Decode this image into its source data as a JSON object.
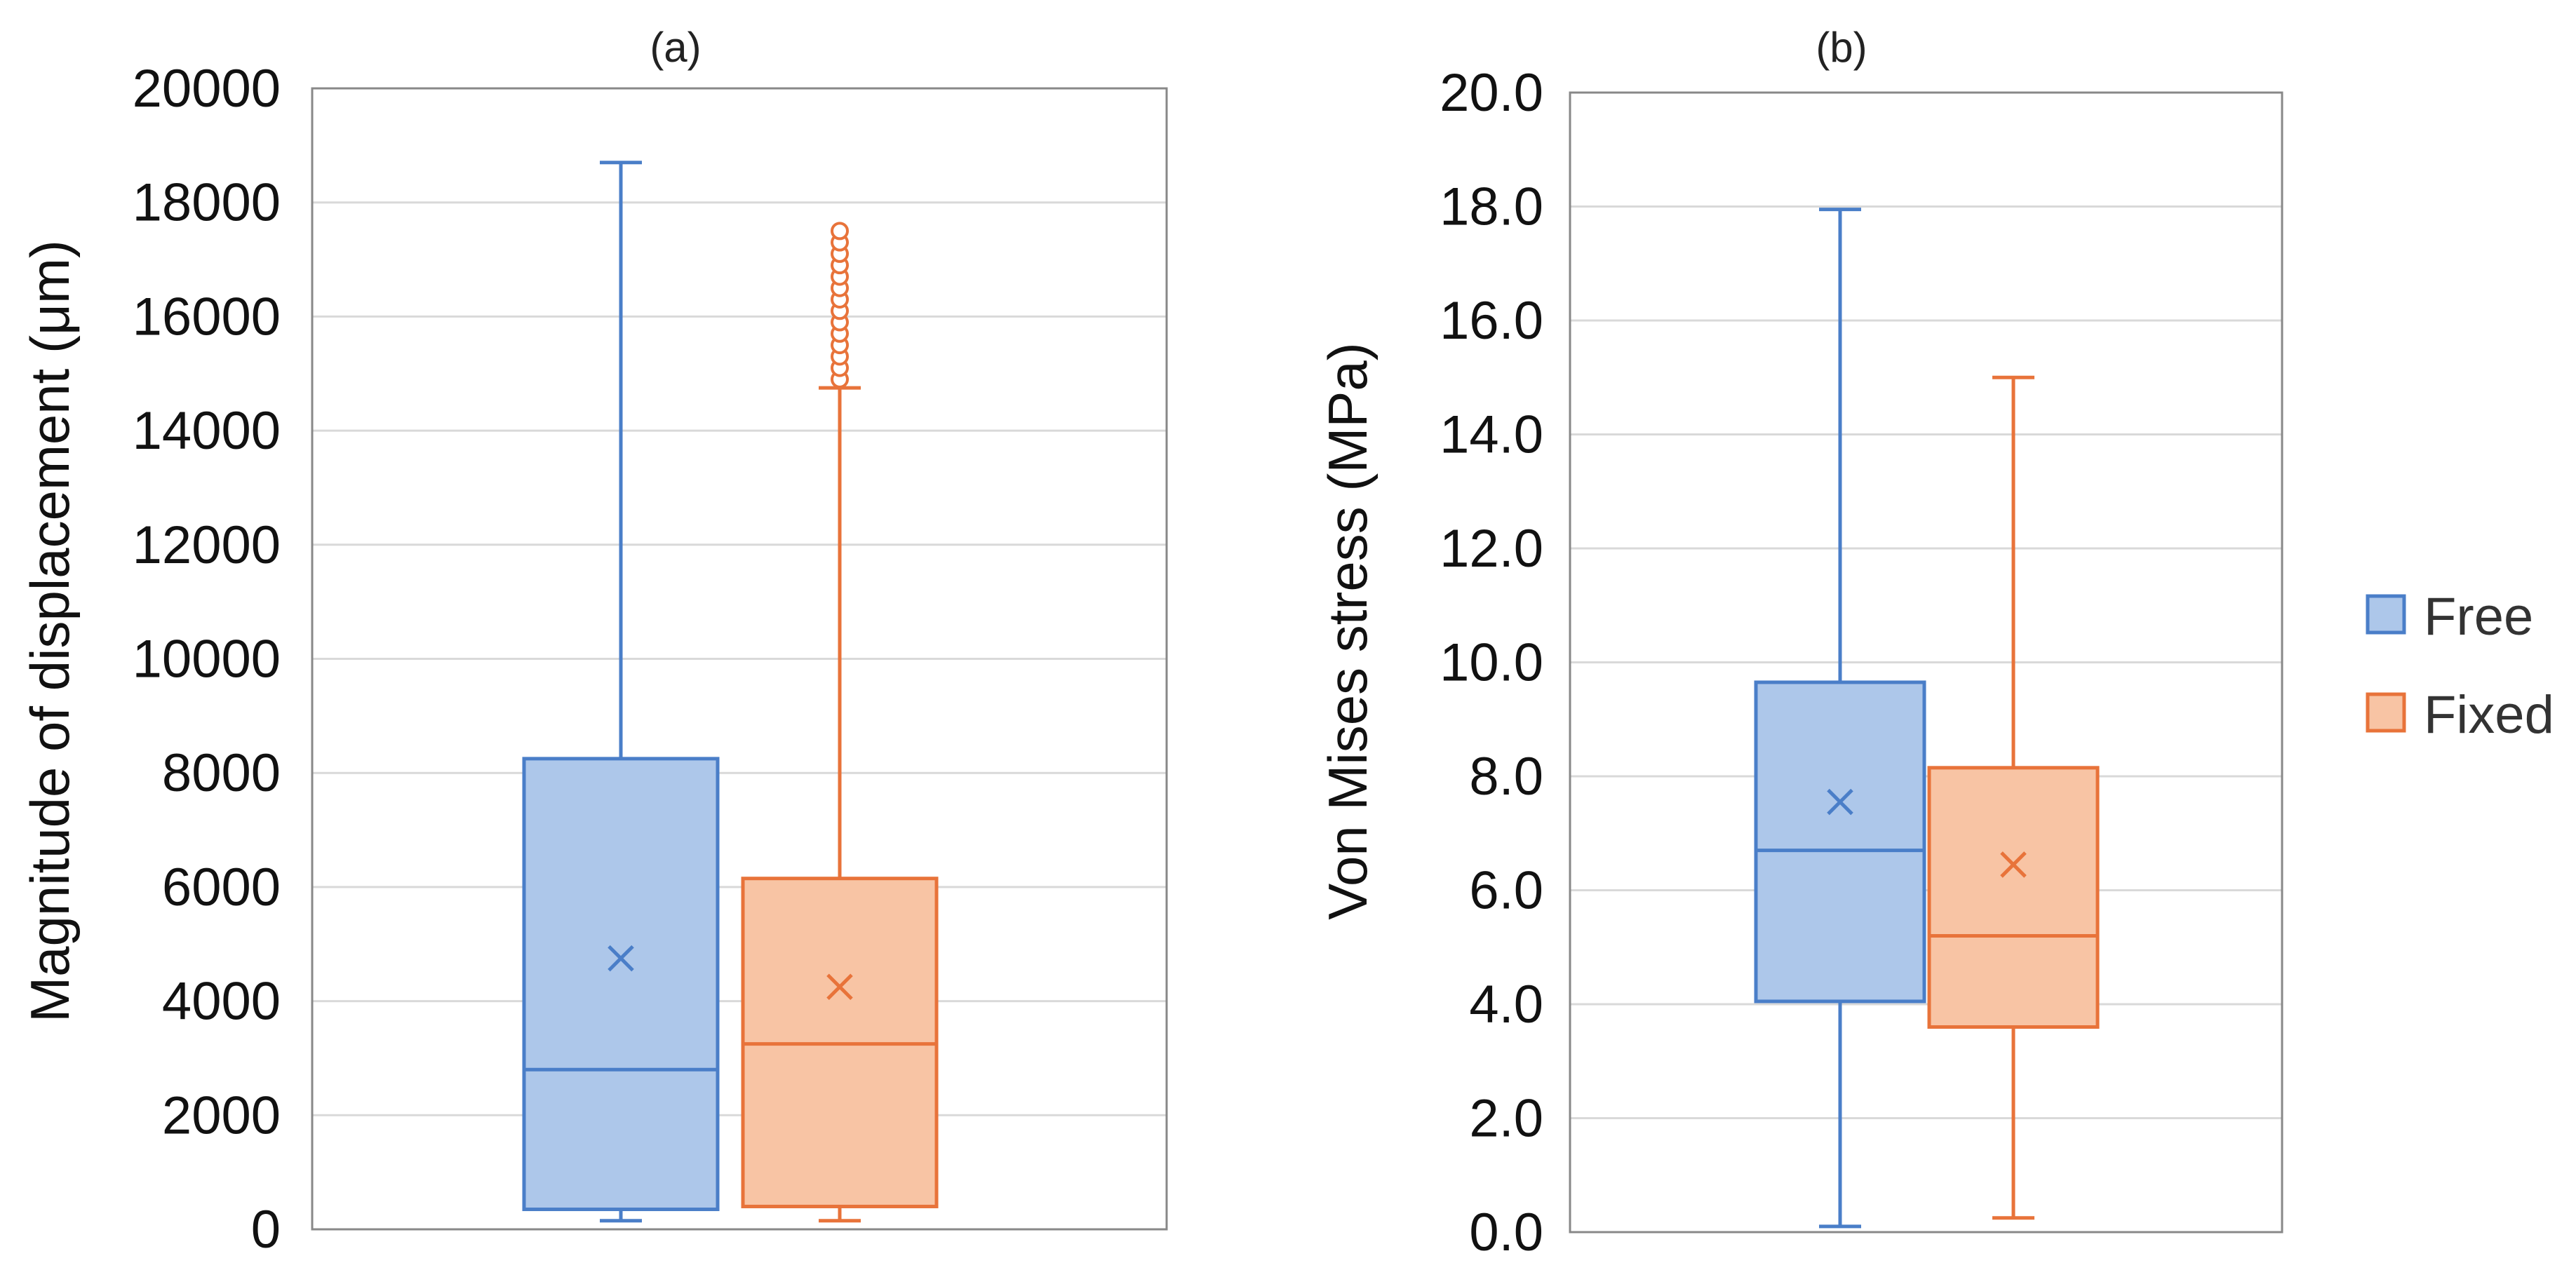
{
  "colors": {
    "free_stroke": "#4a7ec8",
    "free_fill": "#adc7ea",
    "fixed_stroke": "#e8733a",
    "fixed_fill": "#f8c4a4",
    "grid": "#d9d9d9",
    "frame": "#888888"
  },
  "legend": {
    "free": "Free",
    "fixed": "Fixed"
  },
  "chart_data": [
    {
      "type": "box",
      "title": "(a)",
      "ylabel": "Magnitude of displacement (μm)",
      "xlabel": "",
      "ylim": [
        0,
        20000
      ],
      "yticks": [
        0,
        2000,
        4000,
        6000,
        8000,
        10000,
        12000,
        14000,
        16000,
        18000,
        20000
      ],
      "ytick_labels": [
        "0",
        "2000",
        "4000",
        "6000",
        "8000",
        "10000",
        "12000",
        "14000",
        "16000",
        "18000",
        "20000"
      ],
      "grid": true,
      "series": [
        {
          "name": "Free",
          "whisker_low": 150,
          "q1": 350,
          "median": 2800,
          "q3": 8250,
          "whisker_high": 18700,
          "mean": 4750,
          "outliers": []
        },
        {
          "name": "Fixed",
          "whisker_low": 150,
          "q1": 400,
          "median": 3250,
          "q3": 6150,
          "whisker_high": 14750,
          "mean": 4250,
          "outliers": [
            14900,
            15100,
            15300,
            15500,
            15700,
            15900,
            16100,
            16300,
            16500,
            16700,
            16900,
            17100,
            17300,
            17500
          ]
        }
      ]
    },
    {
      "type": "box",
      "title": "(b)",
      "ylabel": "Von Mises stress (MPa)",
      "xlabel": "",
      "ylim": [
        0,
        20
      ],
      "yticks": [
        0,
        2,
        4,
        6,
        8,
        10,
        12,
        14,
        16,
        18,
        20
      ],
      "ytick_labels": [
        "0.0",
        "2.0",
        "4.0",
        "6.0",
        "8.0",
        "10.0",
        "12.0",
        "14.0",
        "16.0",
        "18.0",
        "20.0"
      ],
      "grid": true,
      "series": [
        {
          "name": "Free",
          "whisker_low": 0.1,
          "q1": 4.05,
          "median": 6.7,
          "q3": 9.65,
          "whisker_high": 17.95,
          "mean": 7.55,
          "outliers": []
        },
        {
          "name": "Fixed",
          "whisker_low": 0.25,
          "q1": 3.6,
          "median": 5.2,
          "q3": 8.15,
          "whisker_high": 15.0,
          "mean": 6.45,
          "outliers": []
        }
      ]
    }
  ]
}
